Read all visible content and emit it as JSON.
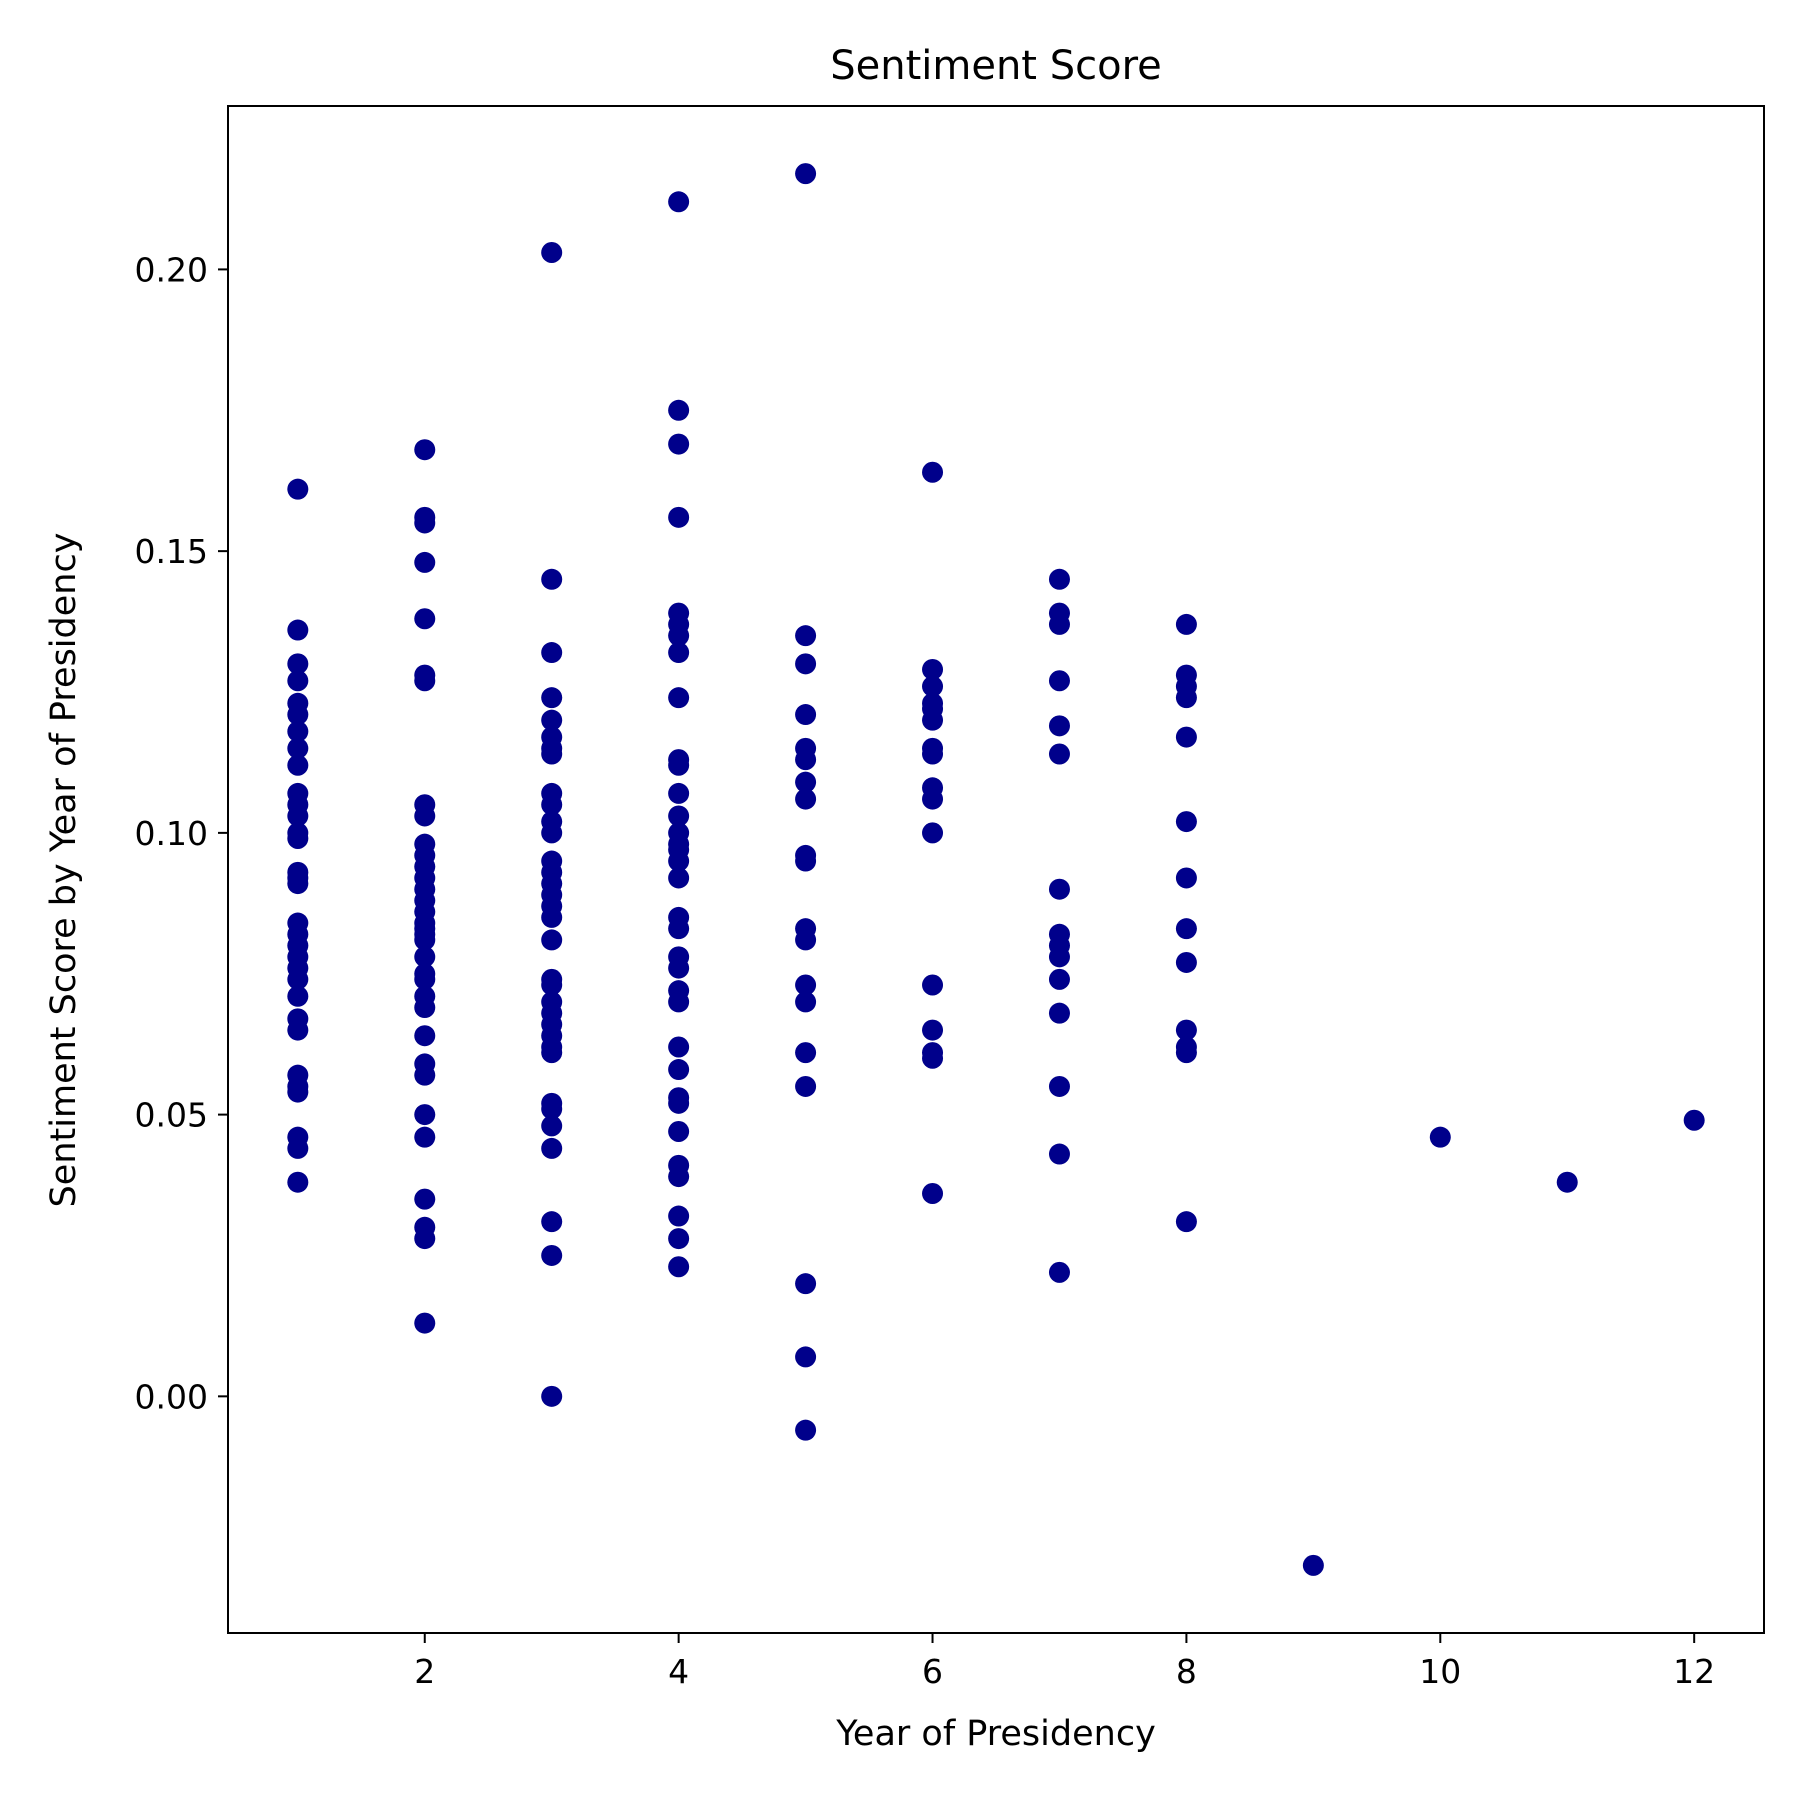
{
  "chart_data": {
    "type": "scatter",
    "title": "Sentiment Score",
    "xlabel": "Year of Presidency",
    "ylabel": "Sentiment Score by Year of Presidency",
    "xlim": [
      0.45,
      12.55
    ],
    "ylim": [
      -0.042,
      0.229
    ],
    "xticks": [
      2,
      4,
      6,
      8,
      10,
      12
    ],
    "xtick_labels": [
      "2",
      "4",
      "6",
      "8",
      "10",
      "12"
    ],
    "yticks": [
      0.0,
      0.05,
      0.1,
      0.15,
      0.2
    ],
    "ytick_labels": [
      "0.00",
      "0.05",
      "0.10",
      "0.15",
      "0.20"
    ],
    "grid": false,
    "marker_color": "#00008b",
    "points": [
      {
        "year": 1,
        "values": [
          0.161,
          0.136,
          0.13,
          0.127,
          0.123,
          0.121,
          0.118,
          0.115,
          0.112,
          0.107,
          0.105,
          0.103,
          0.1,
          0.099,
          0.093,
          0.092,
          0.091,
          0.084,
          0.082,
          0.08,
          0.078,
          0.076,
          0.074,
          0.071,
          0.067,
          0.065,
          0.057,
          0.055,
          0.054,
          0.046,
          0.044,
          0.038
        ]
      },
      {
        "year": 2,
        "values": [
          0.168,
          0.156,
          0.155,
          0.148,
          0.138,
          0.128,
          0.127,
          0.105,
          0.103,
          0.098,
          0.096,
          0.094,
          0.092,
          0.09,
          0.088,
          0.086,
          0.084,
          0.083,
          0.082,
          0.081,
          0.078,
          0.075,
          0.074,
          0.071,
          0.069,
          0.064,
          0.059,
          0.057,
          0.05,
          0.046,
          0.035,
          0.03,
          0.028,
          0.013
        ]
      },
      {
        "year": 3,
        "values": [
          0.203,
          0.145,
          0.132,
          0.124,
          0.12,
          0.117,
          0.115,
          0.114,
          0.107,
          0.105,
          0.102,
          0.1,
          0.095,
          0.093,
          0.091,
          0.089,
          0.087,
          0.085,
          0.081,
          0.074,
          0.073,
          0.07,
          0.068,
          0.066,
          0.064,
          0.062,
          0.061,
          0.052,
          0.051,
          0.048,
          0.044,
          0.031,
          0.025,
          0.0
        ]
      },
      {
        "year": 4,
        "values": [
          0.212,
          0.175,
          0.169,
          0.156,
          0.139,
          0.137,
          0.135,
          0.132,
          0.124,
          0.113,
          0.112,
          0.107,
          0.103,
          0.1,
          0.098,
          0.097,
          0.095,
          0.092,
          0.085,
          0.083,
          0.078,
          0.076,
          0.072,
          0.07,
          0.062,
          0.058,
          0.053,
          0.052,
          0.047,
          0.041,
          0.039,
          0.032,
          0.028,
          0.023
        ]
      },
      {
        "year": 5,
        "values": [
          0.217,
          0.135,
          0.13,
          0.121,
          0.115,
          0.113,
          0.109,
          0.106,
          0.096,
          0.095,
          0.083,
          0.081,
          0.073,
          0.07,
          0.061,
          0.055,
          0.02,
          0.007,
          -0.006
        ]
      },
      {
        "year": 6,
        "values": [
          0.164,
          0.129,
          0.126,
          0.123,
          0.122,
          0.12,
          0.115,
          0.114,
          0.108,
          0.106,
          0.1,
          0.073,
          0.065,
          0.061,
          0.06,
          0.036
        ]
      },
      {
        "year": 7,
        "values": [
          0.145,
          0.139,
          0.137,
          0.127,
          0.119,
          0.114,
          0.09,
          0.082,
          0.08,
          0.078,
          0.074,
          0.068,
          0.055,
          0.043,
          0.022
        ]
      },
      {
        "year": 8,
        "values": [
          0.137,
          0.128,
          0.126,
          0.124,
          0.117,
          0.102,
          0.092,
          0.083,
          0.077,
          0.065,
          0.062,
          0.061,
          0.031
        ]
      },
      {
        "year": 9,
        "values": [
          -0.03
        ]
      },
      {
        "year": 10,
        "values": [
          0.046
        ]
      },
      {
        "year": 11,
        "values": [
          0.038
        ]
      },
      {
        "year": 12,
        "values": [
          0.049
        ]
      }
    ]
  }
}
